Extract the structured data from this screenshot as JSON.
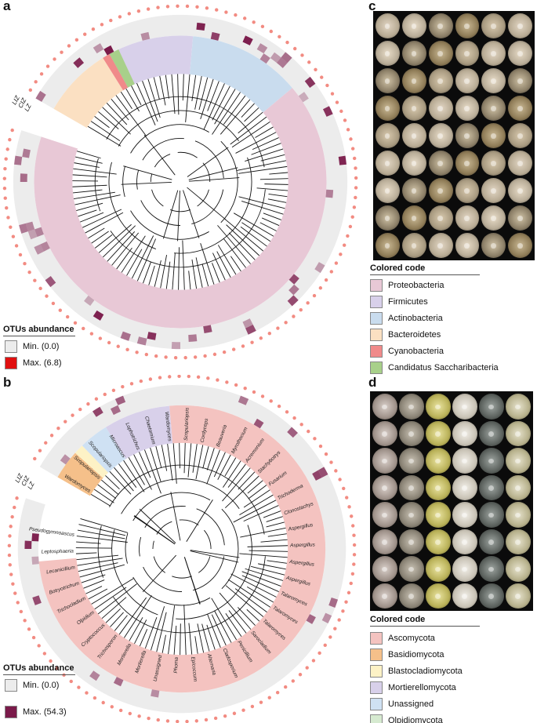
{
  "panels": {
    "a": {
      "label": "a",
      "ring_labels": [
        "LIZ",
        "CIZ",
        "LZ"
      ],
      "legend_title": "OTUs abundance",
      "min_label": "Min. (0.0)",
      "max_label": "Max. (6.8)",
      "max_color": "#e01010"
    },
    "b": {
      "label": "b",
      "ring_labels": [
        "LIZ",
        "CIZ",
        "LZ"
      ],
      "legend_title": "OTUs abundance",
      "min_label": "Min. (0.0)",
      "max_label": "Max. (54.3)",
      "max_color": "#7a1a4a",
      "tip_labels": [
        "Wardomyces",
        "Scopulariopsis",
        "Scopulariopsis",
        "Microascus",
        "Lophotrichus",
        "Chaetomium",
        "Wardomyces",
        "Scopulariopsis",
        "Cordyceps",
        "Beauveria",
        "Myrothecium",
        "Acremonium",
        "Stachybotrys",
        "Fusarium",
        "Trichoderma",
        "Clonostachys",
        "Aspergillus",
        "Aspergillus",
        "Aspergillus",
        "Aspergillus",
        "Talaromyces",
        "Talaromyces",
        "Talaromyces",
        "Sarocladium",
        "Penicillium",
        "Cladosporium",
        "Alternaria",
        "Epicoccum",
        "Phoma",
        "Unassigned",
        "Mortierella",
        "Mortierella",
        "Trichosporon",
        "Cryptococcus",
        "Olpidium",
        "Trichocladium",
        "Botryotrichum",
        "Lecanicillium",
        "Leptosphaeria",
        "Pseudogymnoascus"
      ]
    },
    "c": {
      "label": "c",
      "legend_title": "Colored code",
      "items": [
        {
          "label": "Proteobacteria",
          "color": "#e8c8d6"
        },
        {
          "label": "Firmicutes",
          "color": "#d8d0ea"
        },
        {
          "label": "Actinobacteria",
          "color": "#c9dcee"
        },
        {
          "label": "Bacteroidetes",
          "color": "#fbe0c2"
        },
        {
          "label": "Cyanobacteria",
          "color": "#f08a8a"
        },
        {
          "label": "Candidatus Saccharibacteria",
          "color": "#a8d08a"
        }
      ]
    },
    "d": {
      "label": "d",
      "legend_title": "Colored code",
      "items": [
        {
          "label": "Ascomycota",
          "color": "#f4c3c0"
        },
        {
          "label": "Basidiomycota",
          "color": "#f5c08a"
        },
        {
          "label": "Blastocladiomycota",
          "color": "#fdf2c6"
        },
        {
          "label": "Mortierellomycota",
          "color": "#d8d0ea"
        },
        {
          "label": "Unassigned",
          "color": "#cfe1f3"
        },
        {
          "label": "Olpidiomycota",
          "color": "#d6ead0"
        }
      ]
    }
  },
  "colors": {
    "dot": "#f28b82",
    "ring_bg": "#ececec",
    "heat": "#7a1a4a"
  }
}
